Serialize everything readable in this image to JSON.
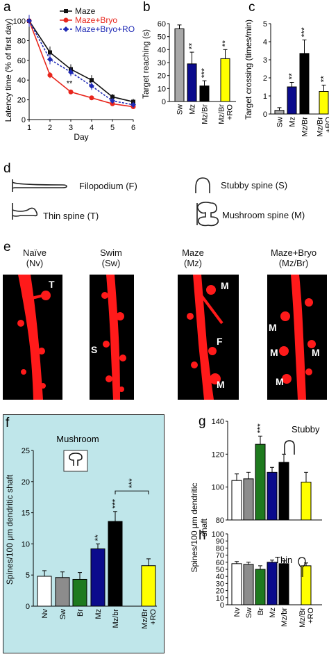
{
  "panels": {
    "a": "a",
    "b": "b",
    "c": "c",
    "d": "d",
    "e": "e",
    "f": "f",
    "g": "g",
    "h": "h"
  },
  "colors": {
    "maze": "#111111",
    "maze_bryo": "#e8261d",
    "maze_bryo_ro": "#1f2ab5",
    "sw": "#a8a8a8",
    "mz": "#0b0b8c",
    "br": "#1e7a1e",
    "mzbr": "#000000",
    "ro": "#ffff00",
    "nv": "#ffffff",
    "dendrite": "#ff1a1a",
    "f_bg": "#bfe6ea"
  },
  "chart_data": [
    {
      "id": "a",
      "type": "line",
      "ylabel": "Latency time (% of first day)",
      "xlabel": "Day",
      "xlim": [
        1,
        6
      ],
      "ylim": [
        0,
        100
      ],
      "x_ticks": [
        "1",
        "2",
        "3",
        "4",
        "5",
        "6"
      ],
      "y_ticks": [
        "0",
        "20",
        "40",
        "60",
        "80",
        "100"
      ],
      "legend_position": "top-right",
      "series": [
        {
          "name": "Maze",
          "color": "#111111",
          "marker": "square",
          "x": [
            1,
            2,
            3,
            4,
            5,
            6
          ],
          "y": [
            100,
            68,
            51,
            40,
            23,
            18
          ],
          "err": [
            6,
            6,
            5,
            5,
            3,
            3
          ]
        },
        {
          "name": "Maze+Bryo",
          "color": "#e8261d",
          "marker": "circle",
          "x": [
            1,
            2,
            3,
            4,
            5,
            6
          ],
          "y": [
            100,
            45,
            28,
            22,
            16,
            13
          ],
          "err": [
            6,
            3,
            2,
            2,
            2,
            2
          ]
        },
        {
          "name": "Maze+Bryo+RO",
          "color": "#1f2ab5",
          "marker": "diamond",
          "x": [
            1,
            2,
            3,
            4,
            5,
            6
          ],
          "y": [
            100,
            61,
            48,
            34,
            19,
            15
          ],
          "err": [
            6,
            5,
            4,
            4,
            3,
            3
          ]
        }
      ],
      "annotations": [
        {
          "x": 3,
          "text": "**"
        },
        {
          "x": 4,
          "text": "*"
        }
      ]
    },
    {
      "id": "b",
      "type": "bar",
      "ylabel": "Target reaching (s)",
      "ylim": [
        0,
        60
      ],
      "y_ticks": [
        "0",
        "10",
        "20",
        "30",
        "40",
        "50",
        "60"
      ],
      "categories": [
        "Sw",
        "Mz",
        "Mz/Br",
        "Mz/Br\n+RO"
      ],
      "values": [
        56,
        29,
        12,
        33
      ],
      "err": [
        3,
        9,
        4,
        7
      ],
      "bar_colors": [
        "#a8a8a8",
        "#0b0b8c",
        "#000000",
        "#ffff00"
      ],
      "sig": [
        "",
        "**",
        "***",
        "**"
      ]
    },
    {
      "id": "c",
      "type": "bar",
      "ylabel": "Target crossing (times/min)",
      "ylim": [
        0,
        5
      ],
      "y_ticks": [
        "0",
        "1",
        "2",
        "3",
        "4",
        "5"
      ],
      "categories": [
        "Sw",
        "Mz",
        "Mz/Br",
        "Mz/Br\n+RO"
      ],
      "values": [
        0.2,
        1.5,
        3.35,
        1.25
      ],
      "err": [
        0.15,
        0.25,
        0.75,
        0.35
      ],
      "bar_colors": [
        "#a8a8a8",
        "#0b0b8c",
        "#000000",
        "#ffff00"
      ],
      "sig": [
        "",
        "**",
        "***",
        "**"
      ]
    },
    {
      "id": "f",
      "type": "bar",
      "title": "Mushroom",
      "ylabel": "Spines/100 μm dendritic shaft",
      "ylim": [
        0,
        25
      ],
      "y_ticks": [
        "0",
        "5",
        "10",
        "15",
        "20",
        "25"
      ],
      "categories": [
        "Nv",
        "Sw",
        "Br",
        "Mz",
        "Mz/br",
        "Mz/Br\n+RO"
      ],
      "values": [
        4.8,
        4.6,
        4.3,
        9.2,
        13.6,
        6.5
      ],
      "err": [
        0.9,
        0.9,
        1.1,
        0.8,
        1.6,
        1.1
      ],
      "bar_colors": [
        "#ffffff",
        "#8c8c8c",
        "#1e7a1e",
        "#0b0b8c",
        "#000000",
        "#ffff00"
      ],
      "sig": [
        "",
        "",
        "",
        "**",
        "***",
        ""
      ],
      "bracket": {
        "from": 4,
        "to": 5,
        "y": 18.5,
        "text": "***"
      }
    },
    {
      "id": "g",
      "type": "bar",
      "title": "Stubby",
      "ylim": [
        80,
        140
      ],
      "y_ticks": [
        "80",
        "100",
        "120",
        "140"
      ],
      "categories": [
        "Nv",
        "Sw",
        "Br",
        "Mz",
        "Mz/br",
        "Mz/Br\n+RO"
      ],
      "values": [
        104,
        105,
        126,
        109,
        115,
        103
      ],
      "err": [
        4,
        4,
        5,
        3,
        5,
        6
      ],
      "bar_colors": [
        "#ffffff",
        "#8c8c8c",
        "#1e7a1e",
        "#0b0b8c",
        "#000000",
        "#ffff00"
      ],
      "sig": [
        "",
        "",
        "***",
        "",
        "",
        ""
      ]
    },
    {
      "id": "h",
      "type": "bar",
      "title": "Thin",
      "ylim": [
        0,
        100
      ],
      "y_ticks": [
        "0",
        "10",
        "20",
        "30",
        "40",
        "50",
        "60",
        "70",
        "80",
        "90",
        "100"
      ],
      "categories": [
        "Nv",
        "Sw",
        "Br",
        "Mz",
        "Mz/br",
        "Mz/Br\n+RO"
      ],
      "values": [
        58,
        57,
        50,
        60,
        58,
        55
      ],
      "err": [
        3,
        3,
        5,
        3,
        4,
        4
      ],
      "bar_colors": [
        "#ffffff",
        "#8c8c8c",
        "#1e7a1e",
        "#0b0b8c",
        "#000000",
        "#ffff00"
      ],
      "sig": [
        "",
        "",
        "",
        "",
        "",
        ""
      ]
    }
  ],
  "gh_ylabel": "Spines/100 μm dendritic shaft",
  "spine_types": {
    "filopodium": "Filopodium (F)",
    "thin": "Thin spine (T)",
    "stubby": "Stubby spine (S)",
    "mushroom": "Mushroom spine (M)"
  },
  "micrographs": [
    {
      "caption1": "Naïve",
      "caption2": "(Nv)",
      "labels": [
        "T"
      ]
    },
    {
      "caption1": "Swim",
      "caption2": "(Sw)",
      "labels": [
        "S"
      ]
    },
    {
      "caption1": "Maze",
      "caption2": "(Mz)",
      "labels": [
        "M",
        "F",
        "M"
      ]
    },
    {
      "caption1": "Maze+Bryo",
      "caption2": "(Mz/Br)",
      "labels": [
        "M",
        "M",
        "M",
        "M"
      ]
    }
  ]
}
